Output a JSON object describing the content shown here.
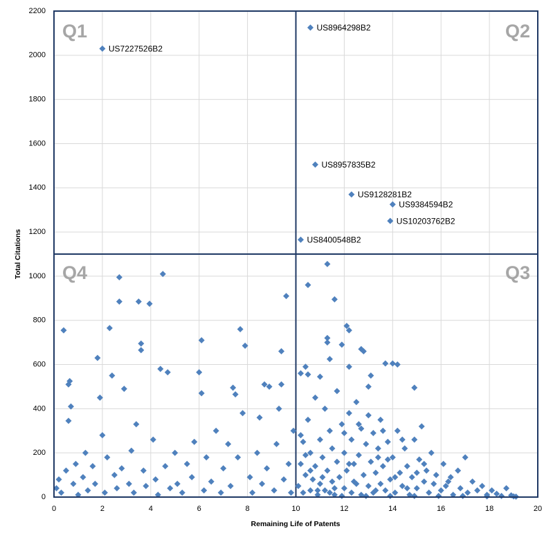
{
  "chart_data": {
    "type": "scatter",
    "x_label": "Remaining Life of Patents",
    "y_label": "Total Citations",
    "quadrant_labels": [
      "Q1",
      "Q2",
      "Q3",
      "Q4"
    ],
    "quadrant_x": 10,
    "quadrant_y": 1100,
    "xlim": [
      0,
      20
    ],
    "xticks": [
      0,
      2,
      4,
      6,
      8,
      10,
      12,
      14,
      16,
      18,
      20
    ],
    "ylim": [
      0,
      2200
    ],
    "yticks": [
      0,
      200,
      400,
      600,
      800,
      1000,
      1200,
      1400,
      1600,
      1800,
      2000,
      2200
    ],
    "grid": true,
    "series": [
      {
        "color": "#4f81bd",
        "x": [
          0.4,
          0.6,
          0.65,
          0.7,
          0.6,
          1.8,
          1.9,
          2.3,
          2.4,
          2.7,
          2.7,
          3.5,
          3.95,
          4.5,
          3.6,
          3.6,
          4.7,
          4.4,
          2.9,
          6.1,
          6.0,
          6.1,
          7.7,
          7.9,
          7.5,
          7.4,
          8.7,
          8.9,
          9.4,
          9.4,
          9.6,
          10.5,
          11.3,
          11.3,
          11.3,
          11.4,
          11.6,
          12.1,
          12.2,
          11.9,
          12.7,
          12.8,
          13.1,
          13.7,
          14.0,
          14.2,
          14.9,
          10.2,
          10.4,
          10.5,
          11.0,
          12.2,
          13.0,
          0.1,
          0.2,
          0.3,
          0.5,
          0.8,
          0.9,
          1.0,
          1.2,
          1.3,
          1.4,
          1.6,
          1.7,
          2.0,
          2.1,
          2.2,
          2.5,
          2.6,
          2.8,
          3.1,
          3.2,
          3.3,
          3.4,
          3.7,
          3.8,
          4.1,
          4.2,
          4.3,
          4.6,
          4.8,
          5.0,
          5.1,
          5.3,
          5.5,
          5.7,
          5.8,
          6.2,
          6.3,
          6.5,
          6.7,
          6.9,
          7.0,
          7.2,
          7.3,
          7.6,
          7.8,
          8.1,
          8.2,
          8.4,
          8.5,
          8.6,
          8.8,
          9.1,
          9.2,
          9.3,
          9.5,
          9.7,
          9.8,
          9.9,
          10.1,
          10.2,
          10.3,
          10.3,
          10.4,
          10.5,
          10.6,
          10.6,
          10.7,
          10.8,
          10.8,
          10.9,
          11.0,
          11.0,
          11.1,
          11.2,
          11.2,
          11.3,
          11.4,
          11.5,
          11.5,
          11.6,
          11.7,
          11.7,
          11.8,
          11.9,
          12.0,
          12.0,
          12.1,
          12.2,
          12.3,
          12.3,
          12.4,
          12.5,
          12.5,
          12.6,
          12.7,
          12.7,
          12.8,
          12.9,
          13.0,
          13.0,
          13.1,
          13.2,
          13.2,
          13.3,
          13.4,
          13.5,
          13.5,
          13.6,
          13.7,
          13.8,
          13.9,
          14.0,
          14.1,
          14.2,
          14.3,
          14.4,
          14.5,
          14.6,
          14.7,
          14.8,
          14.9,
          15.0,
          15.1,
          15.2,
          15.3,
          15.4,
          15.5,
          15.6,
          15.7,
          15.8,
          16.0,
          16.1,
          16.2,
          16.4,
          16.5,
          16.7,
          16.8,
          17.0,
          17.1,
          17.3,
          17.5,
          17.7,
          17.9,
          18.1,
          18.3,
          18.5,
          18.7,
          18.9,
          19.0,
          19.1,
          11.9,
          12.9,
          13.9,
          14.9,
          15.9,
          16.9,
          17.9,
          10.9,
          10.2,
          10.6,
          11.1,
          11.6,
          12.4,
          13.3,
          14.1,
          14.6,
          15.3,
          16.3,
          12.0,
          12.6,
          13.4,
          13.8,
          14.4,
          15.0,
          11.4,
          10.4,
          12.2,
          13.6
        ],
        "values": [
          755,
          510,
          525,
          410,
          345,
          630,
          450,
          765,
          550,
          995,
          885,
          885,
          875,
          1010,
          695,
          665,
          565,
          580,
          490,
          710,
          565,
          470,
          760,
          685,
          465,
          495,
          510,
          500,
          510,
          660,
          910,
          960,
          1055,
          720,
          700,
          625,
          895,
          775,
          755,
          690,
          670,
          660,
          550,
          605,
          605,
          600,
          495,
          560,
          590,
          555,
          545,
          590,
          500,
          40,
          80,
          20,
          120,
          60,
          150,
          10,
          90,
          200,
          30,
          140,
          60,
          280,
          20,
          180,
          100,
          40,
          130,
          60,
          210,
          20,
          330,
          120,
          50,
          260,
          80,
          10,
          140,
          40,
          200,
          60,
          20,
          150,
          90,
          250,
          30,
          180,
          70,
          300,
          20,
          130,
          240,
          50,
          180,
          380,
          90,
          20,
          200,
          360,
          60,
          130,
          30,
          240,
          400,
          80,
          150,
          20,
          300,
          50,
          150,
          250,
          20,
          100,
          350,
          30,
          200,
          80,
          450,
          140,
          10,
          260,
          60,
          180,
          400,
          30,
          120,
          300,
          70,
          220,
          10,
          160,
          480,
          90,
          330,
          40,
          200,
          120,
          380,
          20,
          260,
          150,
          60,
          430,
          190,
          10,
          310,
          100,
          240,
          50,
          370,
          160,
          20,
          290,
          110,
          220,
          60,
          350,
          140,
          30,
          250,
          80,
          180,
          20,
          300,
          110,
          50,
          220,
          140,
          10,
          90,
          260,
          40,
          170,
          320,
          70,
          120,
          20,
          200,
          60,
          100,
          30,
          150,
          50,
          90,
          10,
          120,
          40,
          180,
          20,
          70,
          30,
          50,
          10,
          30,
          15,
          5,
          40,
          8,
          3,
          2,
          5,
          5,
          5,
          5,
          5,
          5,
          3,
          30,
          280,
          120,
          90,
          40,
          70,
          30,
          90,
          40,
          150,
          70,
          290,
          330,
          180,
          170,
          260,
          110,
          20,
          190,
          150,
          300
        ]
      },
      {
        "color": "#4f81bd",
        "x": [
          2.0,
          10.6,
          10.8,
          12.3,
          14.0,
          13.9,
          10.2
        ],
        "values": [
          2030,
          2125,
          1505,
          1370,
          1325,
          1250,
          1165
        ],
        "labels": [
          "US7227526B2",
          "US8964298B2",
          "US8957835B2",
          "US9128281B2",
          "US9384594B2",
          "US10203762B2",
          "US8400548B2"
        ]
      }
    ]
  }
}
